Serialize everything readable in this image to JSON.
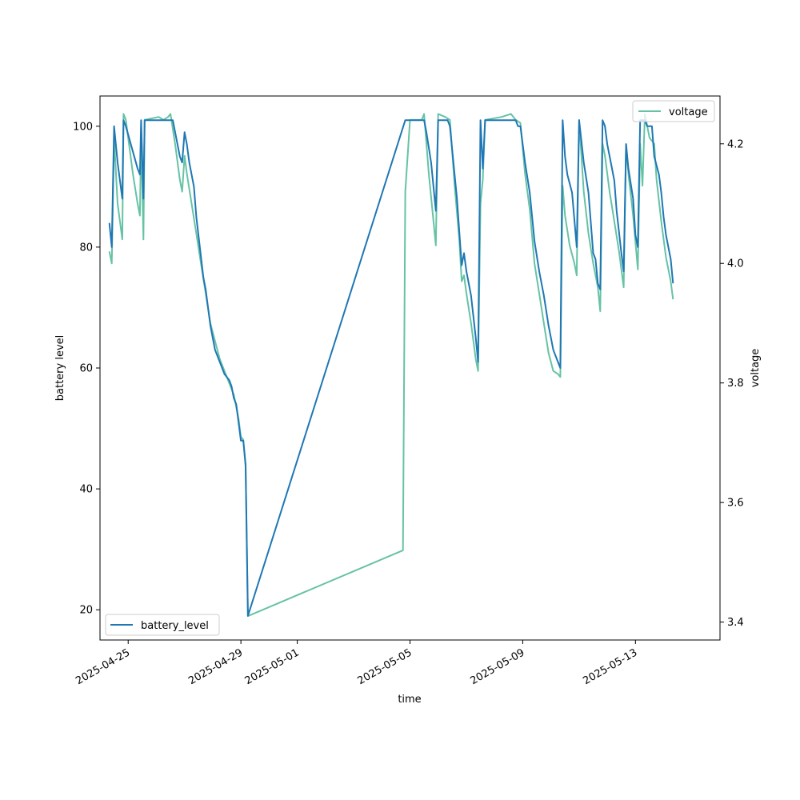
{
  "chart_data": {
    "type": "line",
    "xlabel": "time",
    "ylabel": "battery level",
    "y2label": "voltage",
    "xlim": [
      "2025-04-24T00:00",
      "2025-05-16T00:00"
    ],
    "ylim": [
      15.0,
      105.0
    ],
    "y2lim": [
      3.37,
      4.28
    ],
    "x_ticks": [
      {
        "value": "2025-04-25",
        "label": "2025-04-25"
      },
      {
        "value": "2025-04-29",
        "label": "2025-04-29"
      },
      {
        "value": "2025-05-01",
        "label": "2025-05-01"
      },
      {
        "value": "2025-05-05",
        "label": "2025-05-05"
      },
      {
        "value": "2025-05-09",
        "label": "2025-05-09"
      },
      {
        "value": "2025-05-13",
        "label": "2025-05-13"
      }
    ],
    "y_ticks": [
      20,
      40,
      60,
      80,
      100
    ],
    "y2_ticks": [
      "3.4",
      "3.6",
      "3.8",
      "4.0",
      "4.2"
    ],
    "grid": false,
    "series": [
      {
        "name": "battery_level",
        "axis": "left",
        "color": "#1f77b4",
        "legend_position": "lower-left",
        "points": [
          [
            "2025-04-24T08:00",
            84
          ],
          [
            "2025-04-24T10:00",
            80
          ],
          [
            "2025-04-24T12:00",
            100
          ],
          [
            "2025-04-24T15:00",
            94
          ],
          [
            "2025-04-24T19:00",
            88
          ],
          [
            "2025-04-24T20:00",
            101
          ],
          [
            "2025-04-24T22:00",
            100
          ],
          [
            "2025-04-25T08:00",
            93
          ],
          [
            "2025-04-25T10:00",
            92
          ],
          [
            "2025-04-25T11:00",
            101
          ],
          [
            "2025-04-25T13:00",
            88
          ],
          [
            "2025-04-25T14:00",
            101
          ],
          [
            "2025-04-26T12:00",
            101
          ],
          [
            "2025-04-26T14:00",
            101
          ],
          [
            "2025-04-26T20:00",
            95
          ],
          [
            "2025-04-26T22:00",
            94
          ],
          [
            "2025-04-27T00:00",
            99
          ],
          [
            "2025-04-27T02:00",
            97
          ],
          [
            "2025-04-27T04:00",
            94
          ],
          [
            "2025-04-27T08:00",
            90
          ],
          [
            "2025-04-27T10:00",
            85
          ],
          [
            "2025-04-27T16:00",
            75
          ],
          [
            "2025-04-27T18:00",
            73
          ],
          [
            "2025-04-27T22:00",
            67
          ],
          [
            "2025-04-28T02:00",
            63
          ],
          [
            "2025-04-28T06:00",
            61
          ],
          [
            "2025-04-28T10:00",
            59
          ],
          [
            "2025-04-28T14:00",
            58
          ],
          [
            "2025-04-28T16:00",
            57
          ],
          [
            "2025-04-28T18:00",
            55
          ],
          [
            "2025-04-28T20:00",
            54
          ],
          [
            "2025-04-28T22:00",
            51
          ],
          [
            "2025-04-29T00:00",
            48
          ],
          [
            "2025-04-29T02:00",
            48
          ],
          [
            "2025-04-29T04:00",
            44
          ],
          [
            "2025-04-29T06:00",
            19
          ],
          [
            "2025-05-04T20:00",
            101
          ],
          [
            "2025-05-05T12:00",
            101
          ],
          [
            "2025-05-05T14:00",
            99
          ],
          [
            "2025-05-05T18:00",
            94
          ],
          [
            "2025-05-05T22:00",
            86
          ],
          [
            "2025-05-06T00:00",
            101
          ],
          [
            "2025-05-06T08:00",
            101
          ],
          [
            "2025-05-06T10:00",
            100
          ],
          [
            "2025-05-06T12:00",
            96
          ],
          [
            "2025-05-06T16:00",
            88
          ],
          [
            "2025-05-06T20:00",
            77
          ],
          [
            "2025-05-06T22:00",
            79
          ],
          [
            "2025-05-07T00:00",
            76
          ],
          [
            "2025-05-07T04:00",
            72
          ],
          [
            "2025-05-07T08:00",
            65
          ],
          [
            "2025-05-07T10:00",
            61
          ],
          [
            "2025-05-07T12:00",
            101
          ],
          [
            "2025-05-07T14:00",
            93
          ],
          [
            "2025-05-07T16:00",
            101
          ],
          [
            "2025-05-08T16:00",
            101
          ],
          [
            "2025-05-08T18:00",
            101
          ],
          [
            "2025-05-08T20:00",
            100
          ],
          [
            "2025-05-08T22:00",
            100
          ],
          [
            "2025-05-09T02:00",
            94
          ],
          [
            "2025-05-09T06:00",
            89
          ],
          [
            "2025-05-09T10:00",
            81
          ],
          [
            "2025-05-09T14:00",
            76
          ],
          [
            "2025-05-09T18:00",
            72
          ],
          [
            "2025-05-09T22:00",
            67
          ],
          [
            "2025-05-10T02:00",
            63
          ],
          [
            "2025-05-10T06:00",
            61
          ],
          [
            "2025-05-10T08:00",
            60
          ],
          [
            "2025-05-10T10:00",
            101
          ],
          [
            "2025-05-10T12:00",
            95
          ],
          [
            "2025-05-10T14:00",
            92
          ],
          [
            "2025-05-10T18:00",
            89
          ],
          [
            "2025-05-10T22:00",
            80
          ],
          [
            "2025-05-11T00:00",
            101
          ],
          [
            "2025-05-11T04:00",
            94
          ],
          [
            "2025-05-11T08:00",
            89
          ],
          [
            "2025-05-11T12:00",
            79
          ],
          [
            "2025-05-11T14:00",
            78
          ],
          [
            "2025-05-11T16:00",
            74
          ],
          [
            "2025-05-11T18:00",
            73
          ],
          [
            "2025-05-11T20:00",
            101
          ],
          [
            "2025-05-11T22:00",
            100
          ],
          [
            "2025-05-12T00:00",
            97
          ],
          [
            "2025-05-12T04:00",
            93
          ],
          [
            "2025-05-12T06:00",
            91
          ],
          [
            "2025-05-12T08:00",
            86
          ],
          [
            "2025-05-12T12:00",
            79
          ],
          [
            "2025-05-12T14:00",
            76
          ],
          [
            "2025-05-12T16:00",
            97
          ],
          [
            "2025-05-12T18:00",
            93
          ],
          [
            "2025-05-12T22:00",
            88
          ],
          [
            "2025-05-13T00:00",
            82
          ],
          [
            "2025-05-13T02:00",
            80
          ],
          [
            "2025-05-13T04:00",
            101
          ],
          [
            "2025-05-13T08:00",
            101
          ],
          [
            "2025-05-13T10:00",
            100
          ],
          [
            "2025-05-13T14:00",
            100
          ],
          [
            "2025-05-13T16:00",
            95
          ],
          [
            "2025-05-13T20:00",
            92
          ],
          [
            "2025-05-13T22:00",
            89
          ],
          [
            "2025-05-14T00:00",
            85
          ],
          [
            "2025-05-14T02:00",
            82
          ],
          [
            "2025-05-14T06:00",
            78
          ],
          [
            "2025-05-14T08:00",
            74
          ]
        ]
      },
      {
        "name": "voltage",
        "axis": "right",
        "color": "#66c2a5",
        "legend_position": "upper-right",
        "points": [
          [
            "2025-04-24T08:00",
            4.02
          ],
          [
            "2025-04-24T10:00",
            4.0
          ],
          [
            "2025-04-24T12:00",
            4.21
          ],
          [
            "2025-04-24T15:00",
            4.1
          ],
          [
            "2025-04-24T19:00",
            4.04
          ],
          [
            "2025-04-24T20:00",
            4.25
          ],
          [
            "2025-04-24T22:00",
            4.24
          ],
          [
            "2025-04-25T04:00",
            4.15
          ],
          [
            "2025-04-25T08:00",
            4.1
          ],
          [
            "2025-04-25T10:00",
            4.08
          ],
          [
            "2025-04-25T11:00",
            4.22
          ],
          [
            "2025-04-25T13:00",
            4.04
          ],
          [
            "2025-04-25T14:00",
            4.24
          ],
          [
            "2025-04-26T02:00",
            4.245
          ],
          [
            "2025-04-26T06:00",
            4.24
          ],
          [
            "2025-04-26T10:00",
            4.245
          ],
          [
            "2025-04-26T12:00",
            4.25
          ],
          [
            "2025-04-26T16:00",
            4.2
          ],
          [
            "2025-04-26T20:00",
            4.14
          ],
          [
            "2025-04-26T22:00",
            4.12
          ],
          [
            "2025-04-27T00:00",
            4.18
          ],
          [
            "2025-04-27T02:00",
            4.15
          ],
          [
            "2025-04-27T06:00",
            4.1
          ],
          [
            "2025-04-27T10:00",
            4.05
          ],
          [
            "2025-04-27T14:00",
            4.0
          ],
          [
            "2025-04-27T18:00",
            3.95
          ],
          [
            "2025-04-27T22:00",
            3.9
          ],
          [
            "2025-04-28T02:00",
            3.87
          ],
          [
            "2025-04-28T06:00",
            3.84
          ],
          [
            "2025-04-28T10:00",
            3.82
          ],
          [
            "2025-04-28T14:00",
            3.8
          ],
          [
            "2025-04-28T16:00",
            3.79
          ],
          [
            "2025-04-28T18:00",
            3.78
          ],
          [
            "2025-04-28T22:00",
            3.74
          ],
          [
            "2025-04-29T00:00",
            3.71
          ],
          [
            "2025-04-29T02:00",
            3.705
          ],
          [
            "2025-04-29T04:00",
            3.66
          ],
          [
            "2025-04-29T06:00",
            3.41
          ],
          [
            "2025-05-04T18:00",
            3.52
          ],
          [
            "2025-05-04T20:00",
            4.12
          ],
          [
            "2025-05-05T00:00",
            4.24
          ],
          [
            "2025-05-05T06:00",
            4.24
          ],
          [
            "2025-05-05T10:00",
            4.24
          ],
          [
            "2025-05-05T12:00",
            4.25
          ],
          [
            "2025-05-05T16:00",
            4.15
          ],
          [
            "2025-05-05T20:00",
            4.07
          ],
          [
            "2025-05-05T22:00",
            4.03
          ],
          [
            "2025-05-06T00:00",
            4.25
          ],
          [
            "2025-05-06T06:00",
            4.245
          ],
          [
            "2025-05-06T10:00",
            4.24
          ],
          [
            "2025-05-06T14:00",
            4.13
          ],
          [
            "2025-05-06T18:00",
            4.04
          ],
          [
            "2025-05-06T20:00",
            3.97
          ],
          [
            "2025-05-06T22:00",
            3.98
          ],
          [
            "2025-05-07T00:00",
            3.95
          ],
          [
            "2025-05-07T04:00",
            3.9
          ],
          [
            "2025-05-07T08:00",
            3.84
          ],
          [
            "2025-05-07T10:00",
            3.82
          ],
          [
            "2025-05-07T12:00",
            4.1
          ],
          [
            "2025-05-07T14:00",
            4.14
          ],
          [
            "2025-05-07T16:00",
            4.24
          ],
          [
            "2025-05-08T06:00",
            4.245
          ],
          [
            "2025-05-08T14:00",
            4.25
          ],
          [
            "2025-05-08T18:00",
            4.24
          ],
          [
            "2025-05-08T22:00",
            4.235
          ],
          [
            "2025-05-09T02:00",
            4.15
          ],
          [
            "2025-05-09T06:00",
            4.09
          ],
          [
            "2025-05-09T10:00",
            4.0
          ],
          [
            "2025-05-09T14:00",
            3.95
          ],
          [
            "2025-05-09T18:00",
            3.9
          ],
          [
            "2025-05-09T22:00",
            3.85
          ],
          [
            "2025-05-10T02:00",
            3.82
          ],
          [
            "2025-05-10T06:00",
            3.815
          ],
          [
            "2025-05-10T08:00",
            3.81
          ],
          [
            "2025-05-10T10:00",
            4.13
          ],
          [
            "2025-05-10T12:00",
            4.08
          ],
          [
            "2025-05-10T16:00",
            4.03
          ],
          [
            "2025-05-10T20:00",
            4.0
          ],
          [
            "2025-05-10T22:00",
            3.98
          ],
          [
            "2025-05-11T00:00",
            4.24
          ],
          [
            "2025-05-11T04:00",
            4.12
          ],
          [
            "2025-05-11T08:00",
            4.05
          ],
          [
            "2025-05-11T12:00",
            4.0
          ],
          [
            "2025-05-11T16:00",
            3.96
          ],
          [
            "2025-05-11T18:00",
            3.92
          ],
          [
            "2025-05-11T20:00",
            4.2
          ],
          [
            "2025-05-11T22:00",
            4.18
          ],
          [
            "2025-05-12T02:00",
            4.12
          ],
          [
            "2025-05-12T06:00",
            4.07
          ],
          [
            "2025-05-12T10:00",
            4.02
          ],
          [
            "2025-05-12T14:00",
            3.96
          ],
          [
            "2025-05-12T16:00",
            4.2
          ],
          [
            "2025-05-12T18:00",
            4.15
          ],
          [
            "2025-05-12T22:00",
            4.08
          ],
          [
            "2025-05-13T02:00",
            3.99
          ],
          [
            "2025-05-13T04:00",
            4.2
          ],
          [
            "2025-05-13T06:00",
            4.13
          ],
          [
            "2025-05-13T08:00",
            4.25
          ],
          [
            "2025-05-13T12:00",
            4.21
          ],
          [
            "2025-05-13T16:00",
            4.2
          ],
          [
            "2025-05-13T18:00",
            4.14
          ],
          [
            "2025-05-13T22:00",
            4.07
          ],
          [
            "2025-05-14T02:00",
            4.01
          ],
          [
            "2025-05-14T06:00",
            3.97
          ],
          [
            "2025-05-14T08:00",
            3.94
          ]
        ]
      }
    ]
  }
}
